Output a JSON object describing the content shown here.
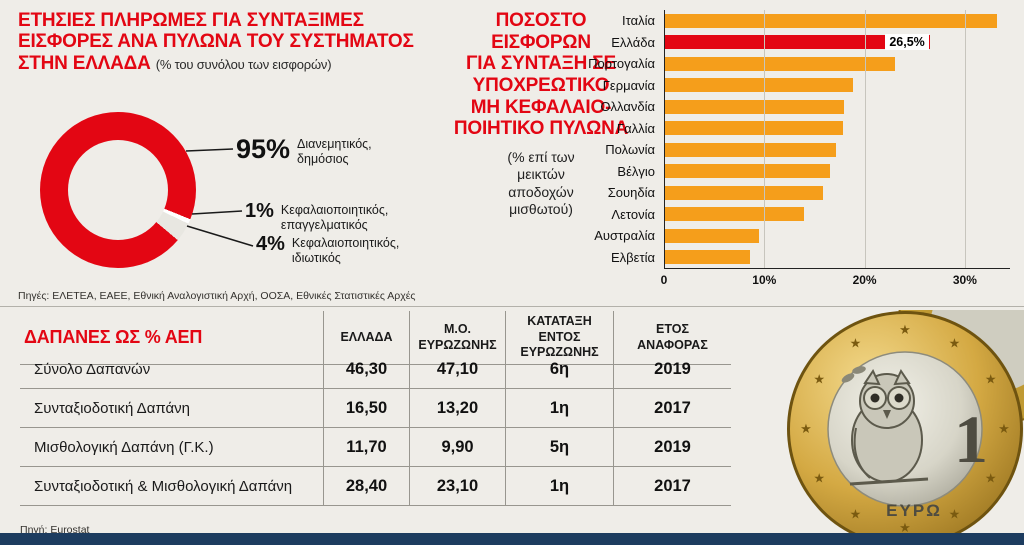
{
  "panel_pillars": {
    "title": "ΕΤΗΣΙΕΣ ΠΛΗΡΩΜΕΣ ΓΙΑ ΣΥΝΤΑΞΙΜΕΣ\nΕΙΣΦΟΡΕΣ ΑΝΑ ΠΥΛΩΝΑ ΤΟΥ ΣΥΣΤΗΜΑΤΟΣ\nΣΤΗΝ ΕΛΛΑΔΑ ",
    "title_note": "(% του συνόλου των εισφορών)",
    "sources": "Πηγές: ΕΛΕΤΕΑ, ΕΑΕΕ, Εθνική Αναλογιστική Αρχή, ΟΟΣΑ, Εθνικές Στατιστικές Αρχές"
  },
  "panel_contributions": {
    "title": "ΠΟΣΟΣΤΟ\nΕΙΣΦΟΡΩΝ\nΓΙΑ ΣΥΝΤΑΞΗ ΣΕ\nΥΠΟΧΡΕΩΤΙΚΟ\nΜΗ ΚΕΦΑΛΑΙΟ-\nΠΟΙΗΤΙΚΟ ΠΥΛΩΝΑ",
    "subtitle": "(% επί των\nμεικτών\nαποδοχών\nμισθωτού)"
  },
  "expenditure": {
    "source": "Πηγή: Eurostat"
  },
  "coin": {
    "denomination": "1",
    "currency_label": "ΕΥΡΩ",
    "star_glyph": "★"
  },
  "colors": {
    "accent_red": "#e30613",
    "bar_orange": "#f59e1b",
    "navy": "#1d3c5f"
  },
  "chart_data": [
    {
      "type": "pie",
      "subtype": "donut",
      "title": "ΕΤΗΣΙΕΣ ΠΛΗΡΩΜΕΣ ΓΙΑ ΣΥΝΤΑΞΙΜΕΣ ΕΙΣΦΟΡΕΣ ΑΝΑ ΠΥΛΩΝΑ ΤΟΥ ΣΥΣΤΗΜΑΤΟΣ ΣΤΗΝ ΕΛΛΑΔΑ (% του συνόλου των εισφορών)",
      "labels": [
        "Διανεμητικός,\nδημόσιος",
        "Κεφαλαιοποιητικός,\nεπαγγελματικός",
        "Κεφαλαιοποιητικός,\nιδιωτικός"
      ],
      "values": [
        95,
        1,
        4
      ],
      "value_labels": [
        "95%",
        "1%",
        "4%"
      ],
      "colors": [
        "#e30613",
        "#ffffff",
        "#e8e7e1"
      ]
    },
    {
      "type": "bar",
      "orientation": "horizontal",
      "title": "ΠΟΣΟΣΤΟ ΕΙΣΦΟΡΩΝ ΓΙΑ ΣΥΝΤΑΞΗ ΣΕ ΥΠΟΧΡΕΩΤΙΚΟ ΜΗ ΚΕΦΑΛΑΙΟΠΟΙΗΤΙΚΟ ΠΥΛΩΝΑ (% επί των μεικτών αποδοχών μισθωτού)",
      "categories": [
        "Ιταλία",
        "Ελλάδα",
        "Πορτογαλία",
        "Γερμανία",
        "Ολλανδία",
        "Γαλλία",
        "Πολωνία",
        "Βέλγιο",
        "Σουηδία",
        "Λετονία",
        "Αυστραλία",
        "Ελβετία"
      ],
      "values": [
        33.2,
        26.5,
        23.0,
        18.8,
        17.9,
        17.8,
        17.2,
        16.6,
        15.9,
        14.0,
        9.5,
        8.6
      ],
      "highlight_index": 1,
      "highlight_label": "26,5%",
      "xticks": [
        {
          "v": 0,
          "label": "0"
        },
        {
          "v": 10,
          "label": "10%"
        },
        {
          "v": 20,
          "label": "20%"
        },
        {
          "v": 30,
          "label": "30%"
        }
      ],
      "xlim": [
        0,
        34.5
      ],
      "grid": true,
      "legend": false
    },
    {
      "type": "table",
      "title": "ΔΑΠΑΝΕΣ ΩΣ % ΑΕΠ",
      "headers": [
        "ΕΛΛΑΔΑ",
        "Μ.Ο.\nΕΥΡΩΖΩΝΗΣ",
        "ΚΑΤΑΤΑΞΗ\nΕΝΤΟΣ\nΕΥΡΩΖΩΝΗΣ",
        "ΕΤΟΣ\nΑΝΑΦΟΡΑΣ"
      ],
      "rows": [
        {
          "label": "Σύνολο Δαπανών",
          "cells": [
            "46,30",
            "47,10",
            "6η",
            "2019"
          ]
        },
        {
          "label": "Συνταξιοδοτική Δαπάνη",
          "cells": [
            "16,50",
            "13,20",
            "1η",
            "2017"
          ]
        },
        {
          "label": "Μισθολογική Δαπάνη (Γ.Κ.)",
          "cells": [
            "11,70",
            "9,90",
            "5η",
            "2019"
          ]
        },
        {
          "label": "Συνταξιοδοτική & Μισθολογική Δαπάνη",
          "cells": [
            "28,40",
            "23,10",
            "1η",
            "2017"
          ]
        }
      ]
    }
  ]
}
